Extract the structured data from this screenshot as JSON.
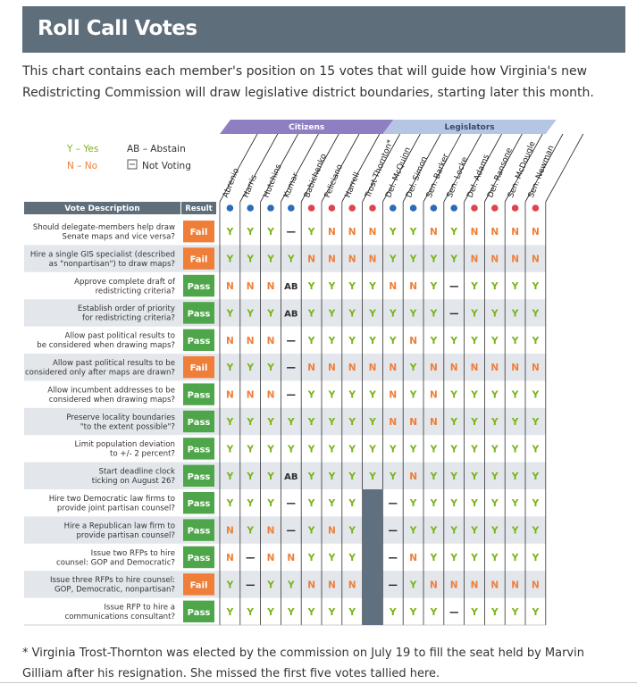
{
  "header": {
    "title": "Roll Call Votes"
  },
  "intro": "This chart contains each member's position on 15 votes that will guide how Virginia's new Redistricting Commission will draw legislative district boundaries, starting later this month.",
  "footnote": "* Virginia Trost-Thornton was elected by the commission on July 19 to fill the seat held by Marvin Gilliam after his resignation. She missed the first five votes tallied here.",
  "legend": {
    "yes": "Y – Yes",
    "no": "N – No",
    "abstain": "AB – Abstain",
    "not_voting": "Not Voting"
  },
  "groups": {
    "citizens": "Citizens",
    "legislators": "Legislators"
  },
  "column_headers": {
    "description": "Vote Description",
    "result": "Result"
  },
  "colors": {
    "header_bg": "#5e6e7b",
    "yes": "#7ab317",
    "no": "#ef7e39",
    "abstain": "#2d2d2d",
    "pass": "#4fa64a",
    "fail": "#ef7e39",
    "dem": "#2b6cb6",
    "rep": "#e0434b",
    "citizens_band": "#8d7fc2",
    "legislators_band": "#b5c6e5",
    "row_alt": "#e3e7ec",
    "not_voting_fill": "#5f7180"
  },
  "members": [
    {
      "name": "Abrenio",
      "party": "D"
    },
    {
      "name": "Harris",
      "party": "D"
    },
    {
      "name": "Hutchins",
      "party": "D"
    },
    {
      "name": "Kumar",
      "party": "D"
    },
    {
      "name": "Babichenko",
      "party": "R"
    },
    {
      "name": "Feliciano",
      "party": "R"
    },
    {
      "name": "Harrell",
      "party": "R"
    },
    {
      "name": "Trost-Thornton*",
      "party": "R"
    },
    {
      "name": "Del. McQuinn",
      "party": "D"
    },
    {
      "name": "Del. Simon",
      "party": "D"
    },
    {
      "name": "Sen. Barker",
      "party": "D"
    },
    {
      "name": "Sen. Locke",
      "party": "D"
    },
    {
      "name": "Del. Adams",
      "party": "R"
    },
    {
      "name": "Del. Ransone",
      "party": "R"
    },
    {
      "name": "Sen. McDougle",
      "party": "R"
    },
    {
      "name": "Sen. Newman",
      "party": "R"
    }
  ],
  "rows": [
    {
      "description": "Should delegate-members help draw Senate maps and vice versa?",
      "result": "Fail",
      "votes": [
        "Y",
        "Y",
        "Y",
        "—",
        "Y",
        "N",
        "N",
        "N",
        "Y",
        "Y",
        "N",
        "Y",
        "N",
        "N",
        "N",
        "N"
      ]
    },
    {
      "description": "Hire a single GIS specialist (described as \"nonpartisan\") to draw maps?",
      "result": "Fail",
      "votes": [
        "Y",
        "Y",
        "Y",
        "Y",
        "N",
        "N",
        "N",
        "N",
        "Y",
        "Y",
        "Y",
        "Y",
        "N",
        "N",
        "N",
        "N"
      ]
    },
    {
      "description": "Approve complete draft of redistricting criteria?",
      "result": "Pass",
      "votes": [
        "N",
        "N",
        "N",
        "AB",
        "Y",
        "Y",
        "Y",
        "Y",
        "N",
        "N",
        "Y",
        "—",
        "Y",
        "Y",
        "Y",
        "Y"
      ]
    },
    {
      "description": "Establish order of priority for redistricting criteria?",
      "result": "Pass",
      "votes": [
        "Y",
        "Y",
        "Y",
        "AB",
        "Y",
        "Y",
        "Y",
        "Y",
        "Y",
        "Y",
        "Y",
        "—",
        "Y",
        "Y",
        "Y",
        "Y"
      ]
    },
    {
      "description": "Allow past political results to be considered when drawing maps?",
      "result": "Pass",
      "votes": [
        "N",
        "N",
        "N",
        "—",
        "Y",
        "Y",
        "Y",
        "Y",
        "Y",
        "N",
        "Y",
        "Y",
        "Y",
        "Y",
        "Y",
        "Y"
      ]
    },
    {
      "description": "Allow past political results to be considered only after maps are drawn?",
      "result": "Fail",
      "votes": [
        "Y",
        "Y",
        "Y",
        "—",
        "N",
        "N",
        "N",
        "N",
        "N",
        "Y",
        "N",
        "N",
        "N",
        "N",
        "N",
        "N"
      ]
    },
    {
      "description": "Allow incumbent addresses to be considered when drawing maps?",
      "result": "Pass",
      "votes": [
        "N",
        "N",
        "N",
        "—",
        "Y",
        "Y",
        "Y",
        "Y",
        "N",
        "Y",
        "N",
        "Y",
        "Y",
        "Y",
        "Y",
        "Y"
      ]
    },
    {
      "description": "Preserve locality boundaries \"to the extent possible\"?",
      "result": "Pass",
      "votes": [
        "Y",
        "Y",
        "Y",
        "Y",
        "Y",
        "Y",
        "Y",
        "Y",
        "N",
        "N",
        "N",
        "Y",
        "Y",
        "Y",
        "Y",
        "Y"
      ]
    },
    {
      "description": "Limit population deviation to +/- 2 percent?",
      "result": "Pass",
      "votes": [
        "Y",
        "Y",
        "Y",
        "Y",
        "Y",
        "Y",
        "Y",
        "Y",
        "Y",
        "Y",
        "Y",
        "Y",
        "Y",
        "Y",
        "Y",
        "Y"
      ]
    },
    {
      "description": "Start deadline clock ticking on August 26?",
      "result": "Pass",
      "votes": [
        "Y",
        "Y",
        "Y",
        "AB",
        "Y",
        "Y",
        "Y",
        "Y",
        "Y",
        "N",
        "Y",
        "Y",
        "Y",
        "Y",
        "Y",
        "Y"
      ]
    },
    {
      "description": "Hire two Democratic law firms to provide joint partisan counsel?",
      "result": "Pass",
      "votes": [
        "Y",
        "Y",
        "Y",
        "—",
        "Y",
        "Y",
        "Y",
        "NV",
        "—",
        "Y",
        "Y",
        "Y",
        "Y",
        "Y",
        "Y",
        "Y"
      ]
    },
    {
      "description": "Hire a Republican law firm to provide partisan counsel?",
      "result": "Pass",
      "votes": [
        "N",
        "Y",
        "N",
        "—",
        "Y",
        "N",
        "Y",
        "NV",
        "—",
        "Y",
        "Y",
        "Y",
        "Y",
        "Y",
        "Y",
        "Y"
      ]
    },
    {
      "description": "Issue two RFPs to hire counsel: GOP and Democratic?",
      "result": "Pass",
      "votes": [
        "N",
        "—",
        "N",
        "N",
        "Y",
        "Y",
        "Y",
        "NV",
        "—",
        "N",
        "Y",
        "Y",
        "Y",
        "Y",
        "Y",
        "Y"
      ]
    },
    {
      "description": "Issue three RFPs to hire counsel: GOP, Democratic, nonpartisan?",
      "result": "Fail",
      "votes": [
        "Y",
        "—",
        "Y",
        "Y",
        "N",
        "N",
        "N",
        "NV",
        "—",
        "Y",
        "N",
        "N",
        "N",
        "N",
        "N",
        "N"
      ]
    },
    {
      "description": "Issue RFP to hire a communications consultant?",
      "result": "Pass",
      "votes": [
        "Y",
        "Y",
        "Y",
        "Y",
        "Y",
        "Y",
        "Y",
        "NV",
        "Y",
        "Y",
        "Y",
        "—",
        "Y",
        "Y",
        "Y",
        "Y"
      ]
    }
  ]
}
